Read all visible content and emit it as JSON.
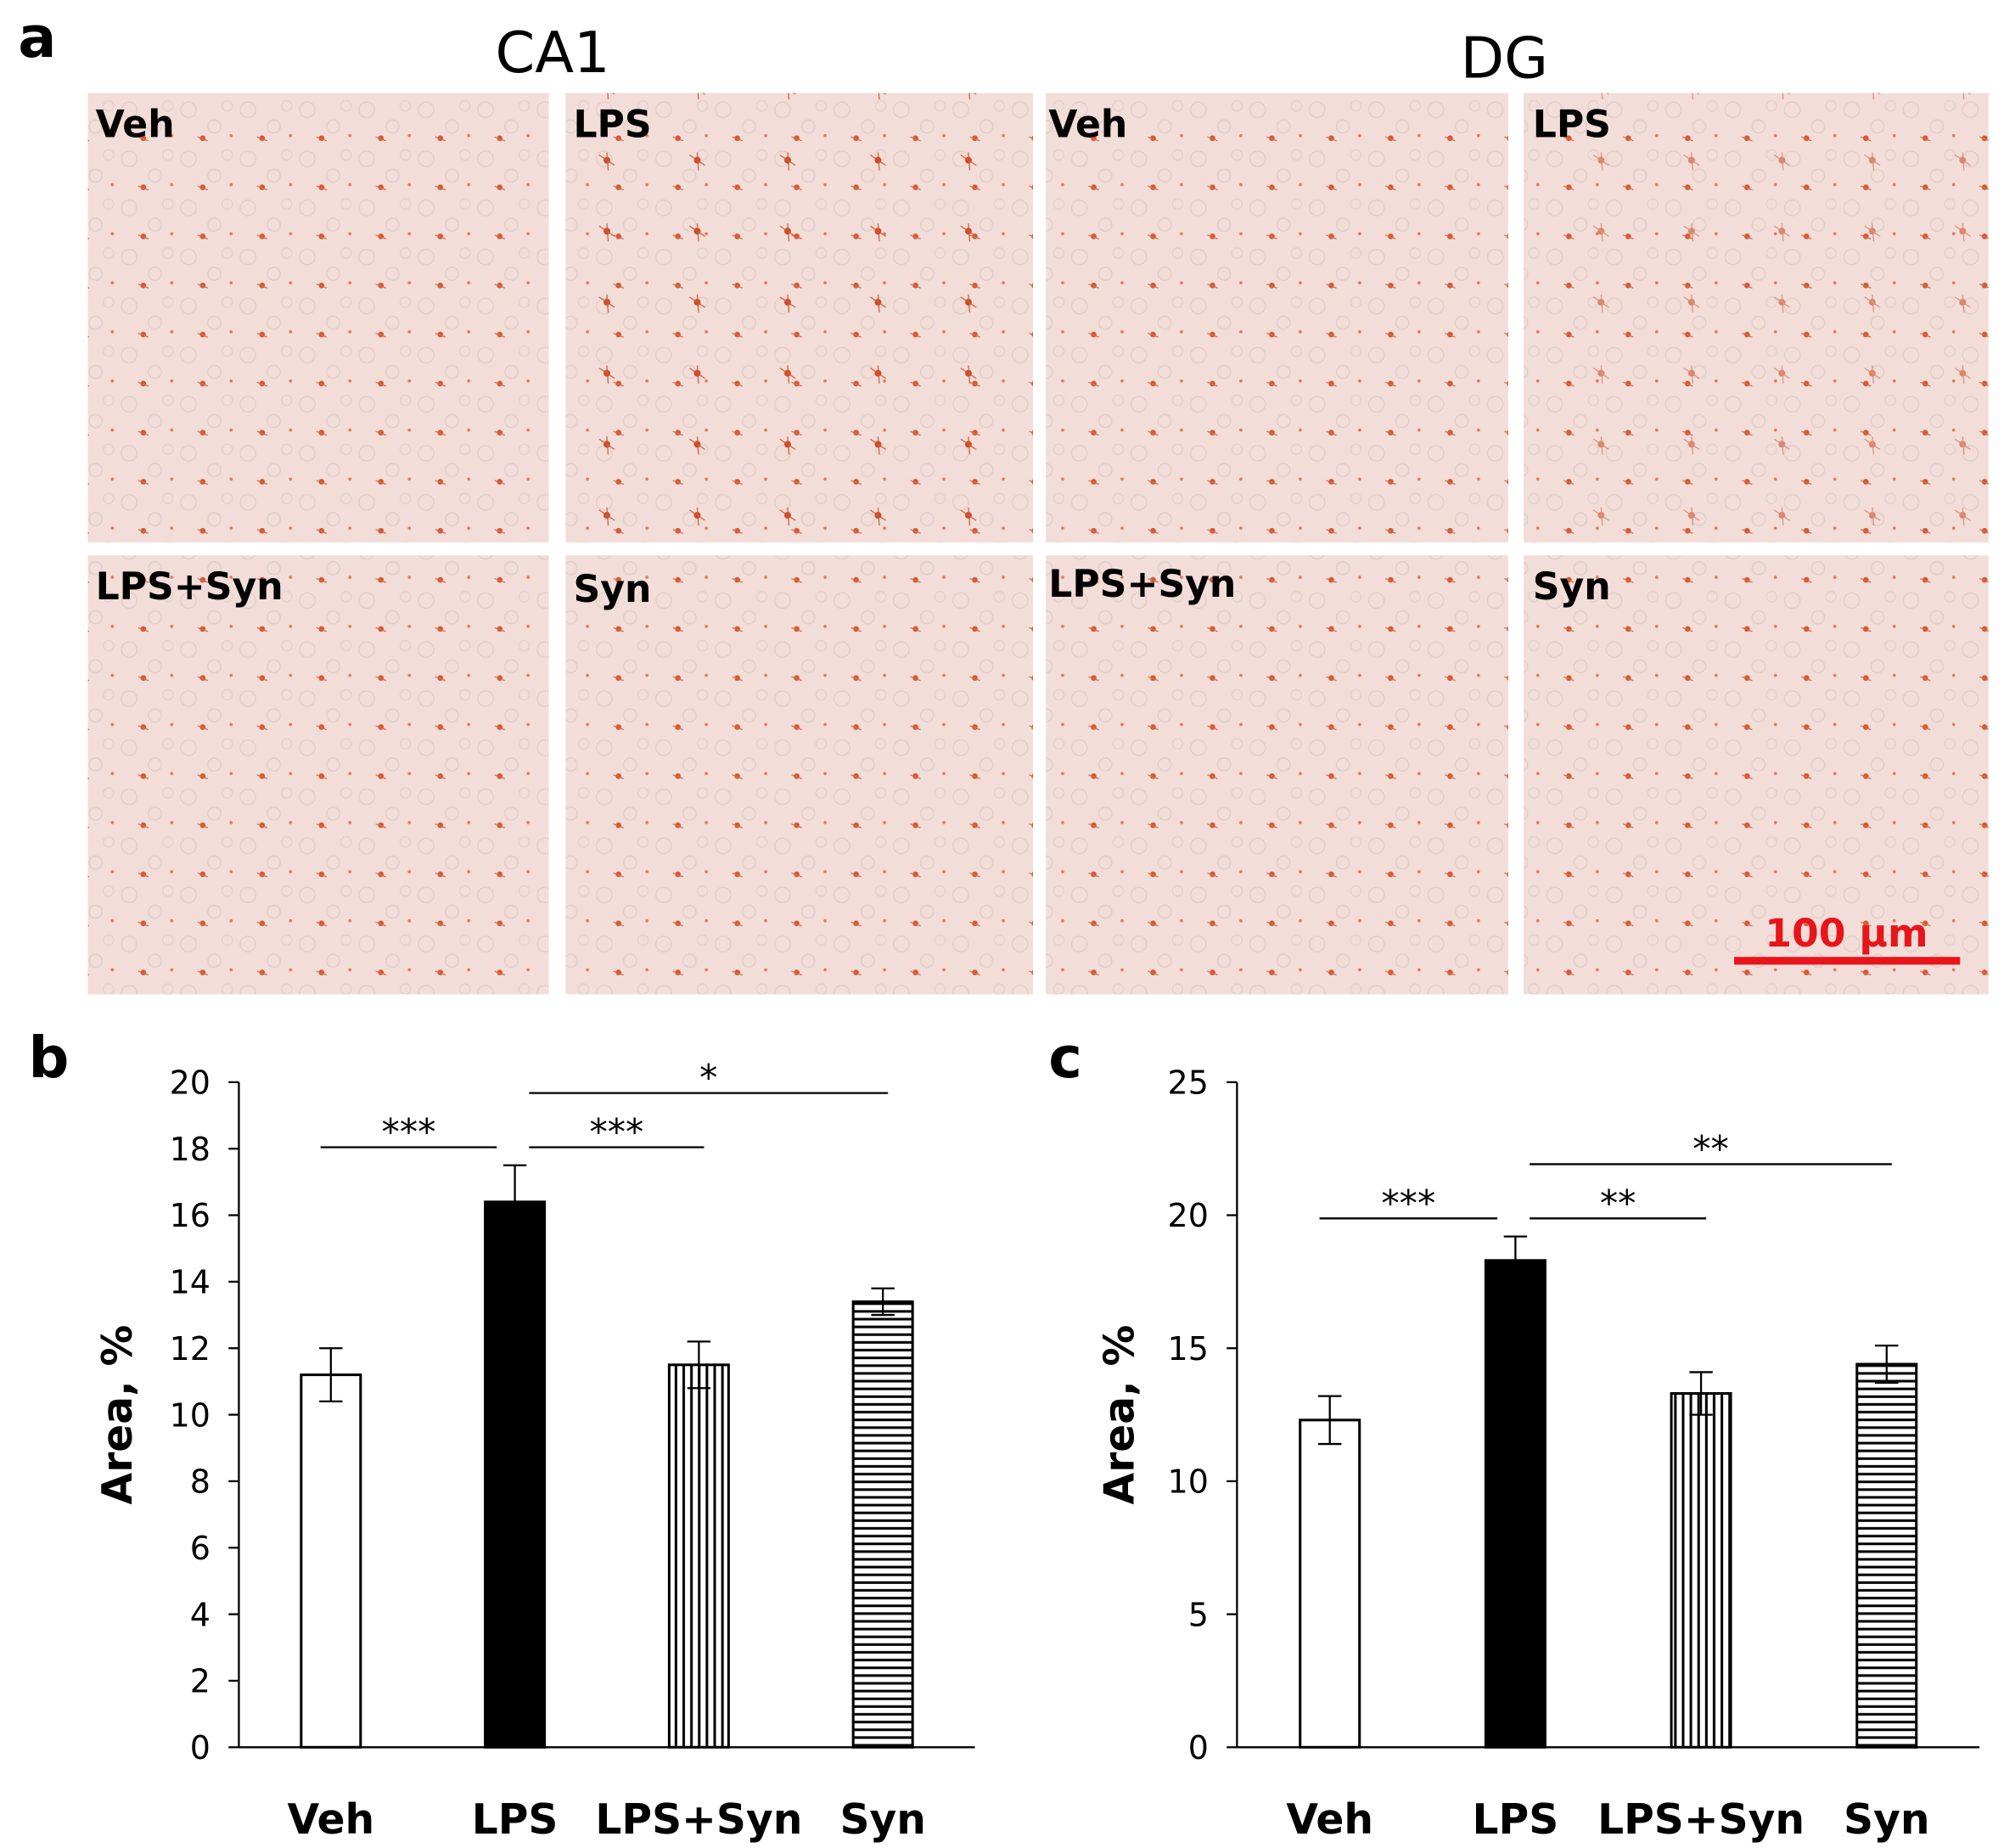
{
  "figure": {
    "panel_labels": [
      "a",
      "b",
      "c"
    ],
    "images": {
      "regions": [
        "CA1",
        "DG"
      ],
      "labels": [
        "Veh",
        "LPS",
        "Veh",
        "LPS",
        "LPS+Syn",
        "Syn",
        "LPS+Syn",
        "Syn"
      ],
      "scale_bar": "100 µm"
    }
  },
  "chart_data": [
    {
      "type": "bar",
      "y_label": "Area, %",
      "categories": [
        "Veh",
        "LPS",
        "LPS+Syn",
        "Syn"
      ],
      "values": [
        11.2,
        16.4,
        11.5,
        13.4
      ],
      "errors": [
        0.8,
        1.1,
        0.7,
        0.4
      ],
      "fills": [
        "white",
        "black",
        "vertical",
        "horizontal"
      ],
      "ylim": [
        0,
        20
      ],
      "yticks": [
        0,
        2,
        4,
        6,
        8,
        10,
        12,
        14,
        16,
        18,
        20
      ],
      "comparisons": [
        {
          "label": "***",
          "between": [
            "Veh",
            "LPS"
          ]
        },
        {
          "label": "***",
          "between": [
            "LPS",
            "LPS+Syn"
          ]
        },
        {
          "label": "*",
          "between": [
            "LPS",
            "Syn"
          ]
        }
      ]
    },
    {
      "type": "bar",
      "y_label": "Area, %",
      "categories": [
        "Veh",
        "LPS",
        "LPS+Syn",
        "Syn"
      ],
      "values": [
        12.3,
        18.3,
        13.3,
        14.4
      ],
      "errors": [
        0.9,
        0.9,
        0.8,
        0.7
      ],
      "fills": [
        "white",
        "black",
        "vertical",
        "horizontal"
      ],
      "ylim": [
        0,
        25
      ],
      "yticks": [
        0,
        5,
        10,
        15,
        20,
        25
      ],
      "comparisons": [
        {
          "label": "***",
          "between": [
            "Veh",
            "LPS"
          ]
        },
        {
          "label": "**",
          "between": [
            "LPS",
            "LPS+Syn"
          ]
        },
        {
          "label": "**",
          "between": [
            "LPS",
            "Syn"
          ]
        }
      ]
    }
  ]
}
